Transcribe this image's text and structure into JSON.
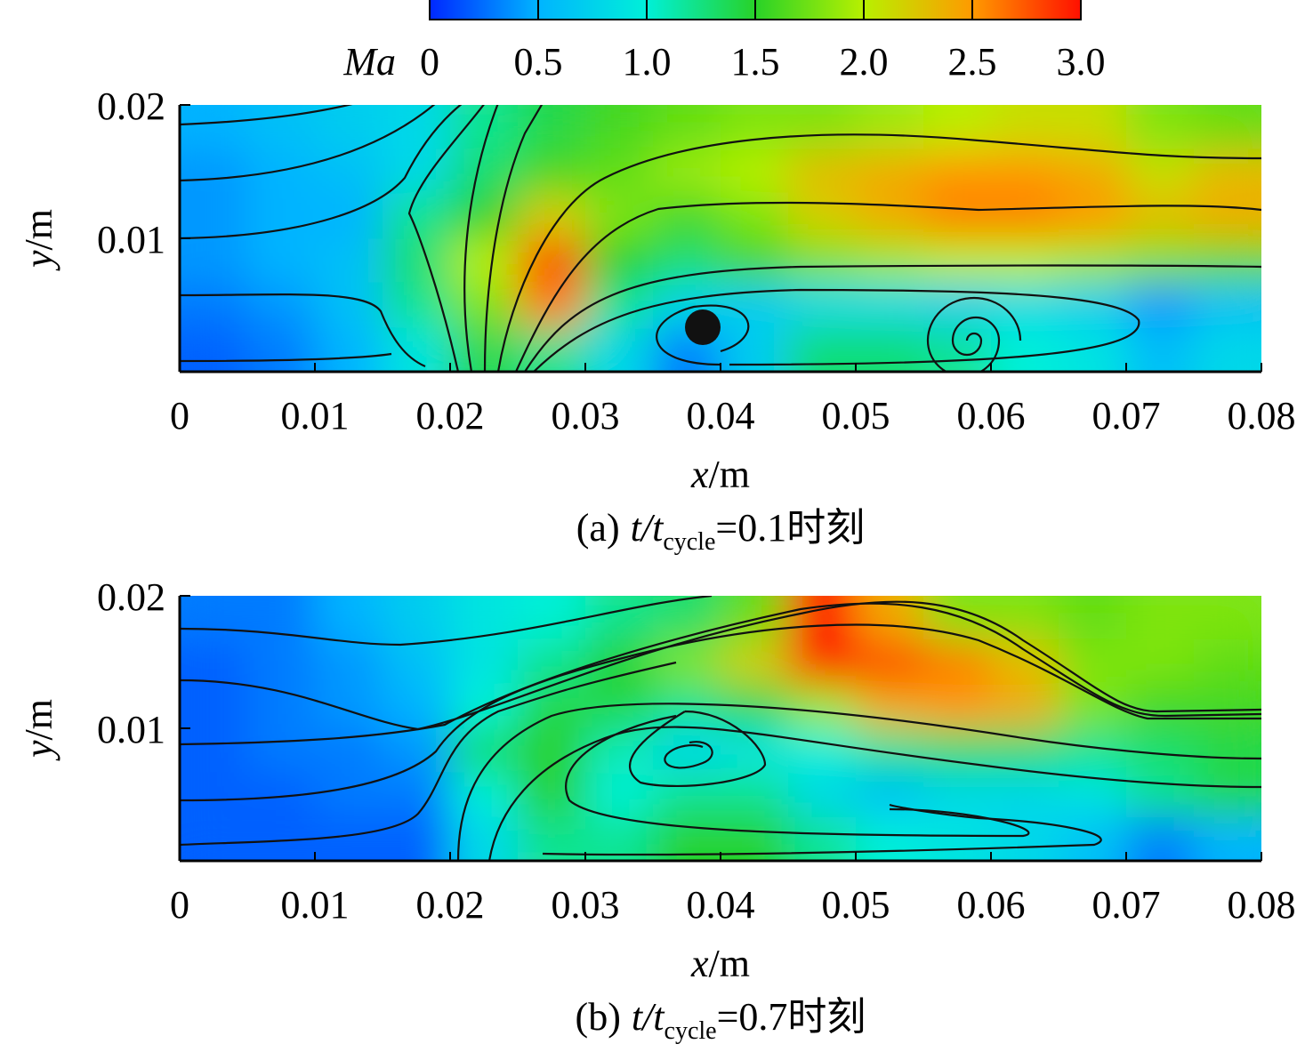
{
  "colorbar": {
    "label": "Ma",
    "clim": [
      0,
      3
    ],
    "ticks": [
      0,
      0.5,
      {
        "value": 1,
        "label": "1.0"
      },
      1.5,
      {
        "value": 2,
        "label": "2.0"
      },
      2.5,
      {
        "value": 3,
        "label": "3.0"
      }
    ],
    "colormap": [
      "#0028ff",
      "#00b4ff",
      "#00f0d8",
      "#28d228",
      "#b8f000",
      "#ff9a00",
      "#ff1000"
    ]
  },
  "chart_data": [
    {
      "type": "contour",
      "caption": {
        "label": "(a)",
        "symbol": "t/t",
        "subscript": "cycle",
        "value": "=0.1时刻"
      },
      "xlabel_symbol": "x",
      "xlabel_unit": "/m",
      "ylabel_symbol": "y",
      "ylabel_unit": "/m",
      "xlim": [
        0,
        0.08
      ],
      "ylim": [
        0,
        0.02
      ],
      "xticks": [
        0,
        0.01,
        0.02,
        0.03,
        0.04,
        0.05,
        0.06,
        0.07,
        0.08
      ],
      "yticks": [
        0.01,
        0.02
      ],
      "field": [
        [
          0.5,
          0.6,
          0.7,
          0.8,
          1.2,
          1.4,
          1.6,
          1.7,
          1.8,
          1.8,
          1.9,
          2.0,
          2.1,
          2.1,
          1.8,
          1.7
        ],
        [
          0.4,
          0.5,
          0.6,
          0.8,
          1.3,
          1.6,
          1.7,
          1.9,
          2.0,
          2.3,
          2.4,
          2.5,
          2.5,
          2.4,
          2.1,
          2.3
        ],
        [
          0.4,
          0.5,
          0.5,
          1.2,
          1.5,
          2.2,
          1.8,
          1.6,
          1.8,
          2.2,
          2.4,
          2.6,
          2.6,
          2.5,
          2.3,
          2.4
        ],
        [
          0.4,
          0.5,
          0.6,
          1.3,
          2.0,
          2.8,
          1.5,
          1.3,
          1.6,
          1.8,
          1.9,
          2.0,
          2.0,
          1.9,
          1.8,
          1.7
        ],
        [
          0.3,
          0.4,
          0.6,
          1.2,
          1.8,
          2.6,
          1.2,
          0.8,
          0.7,
          0.8,
          0.8,
          0.7,
          0.8,
          0.7,
          0.4,
          0.6
        ],
        [
          0.2,
          0.3,
          0.5,
          0.9,
          1.4,
          1.2,
          0.8,
          0.3,
          0.7,
          1.3,
          1.3,
          1.2,
          1.0,
          0.9,
          0.6,
          0.8
        ]
      ]
    },
    {
      "type": "contour",
      "caption": {
        "label": "(b)",
        "symbol": "t/t",
        "subscript": "cycle",
        "value": "=0.7时刻"
      },
      "xlabel_symbol": "x",
      "xlabel_unit": "/m",
      "ylabel_symbol": "y",
      "ylabel_unit": "/m",
      "xlim": [
        0,
        0.08
      ],
      "ylim": [
        0,
        0.02
      ],
      "xticks": [
        0,
        0.01,
        0.02,
        0.03,
        0.04,
        0.05,
        0.06,
        0.07,
        0.08
      ],
      "yticks": [
        0.01,
        0.02
      ],
      "field": [
        [
          0.3,
          0.3,
          0.5,
          0.7,
          0.9,
          1.0,
          1.2,
          1.3,
          1.7,
          3.0,
          2.4,
          1.8,
          1.8,
          1.7,
          1.8,
          1.8
        ],
        [
          0.2,
          0.3,
          0.4,
          0.6,
          0.9,
          1.2,
          1.5,
          1.8,
          2.2,
          3.0,
          2.8,
          2.6,
          2.3,
          1.8,
          1.8,
          1.7
        ],
        [
          0.2,
          0.3,
          0.4,
          0.5,
          1.0,
          1.4,
          1.4,
          1.2,
          1.4,
          1.9,
          2.4,
          2.5,
          2.4,
          1.8,
          1.6,
          1.6
        ],
        [
          0.2,
          0.3,
          0.3,
          0.4,
          1.3,
          1.5,
          1.1,
          0.8,
          0.9,
          1.0,
          1.2,
          1.3,
          1.3,
          1.2,
          1.3,
          1.4
        ],
        [
          0.2,
          0.2,
          0.3,
          0.3,
          1.0,
          1.5,
          1.0,
          1.2,
          1.2,
          0.8,
          0.6,
          0.8,
          0.8,
          0.9,
          1.2,
          1.4
        ],
        [
          0.2,
          0.2,
          0.2,
          0.2,
          0.8,
          1.2,
          1.2,
          1.5,
          1.5,
          1.2,
          1.0,
          0.9,
          0.8,
          0.6,
          0.3,
          0.5
        ]
      ]
    }
  ]
}
